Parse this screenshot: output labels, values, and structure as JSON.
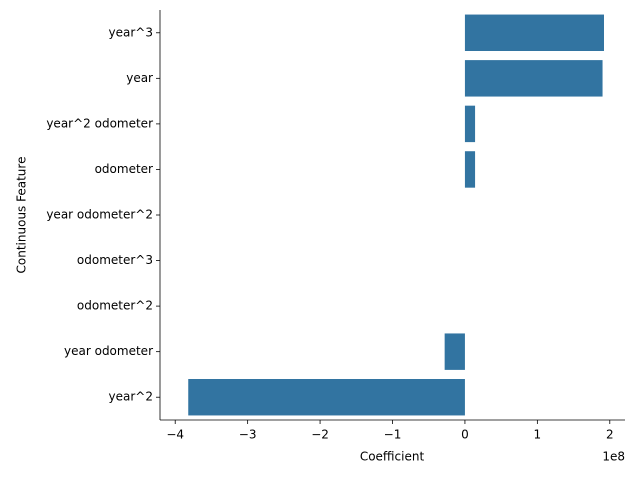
{
  "chart_data": {
    "type": "barh",
    "categories": [
      "year^3",
      "year",
      "year^2 odometer",
      "odometer",
      "year odometer^2",
      "odometer^3",
      "odometer^2",
      "year odometer",
      "year^2"
    ],
    "values": [
      1.92,
      1.9,
      0.14,
      0.14,
      0,
      0,
      0,
      -0.28,
      -3.82
    ],
    "color": "#3274a1",
    "xlabel": "Coefficient",
    "ylabel": "Continuous Feature",
    "x_offset_label": "1e8",
    "xlim": [
      -4.21,
      2.21
    ],
    "xticks": [
      {
        "value": -4,
        "label": "−4"
      },
      {
        "value": -3,
        "label": "−3"
      },
      {
        "value": -2,
        "label": "−2"
      },
      {
        "value": -1,
        "label": "−1"
      },
      0,
      1,
      2
    ]
  }
}
